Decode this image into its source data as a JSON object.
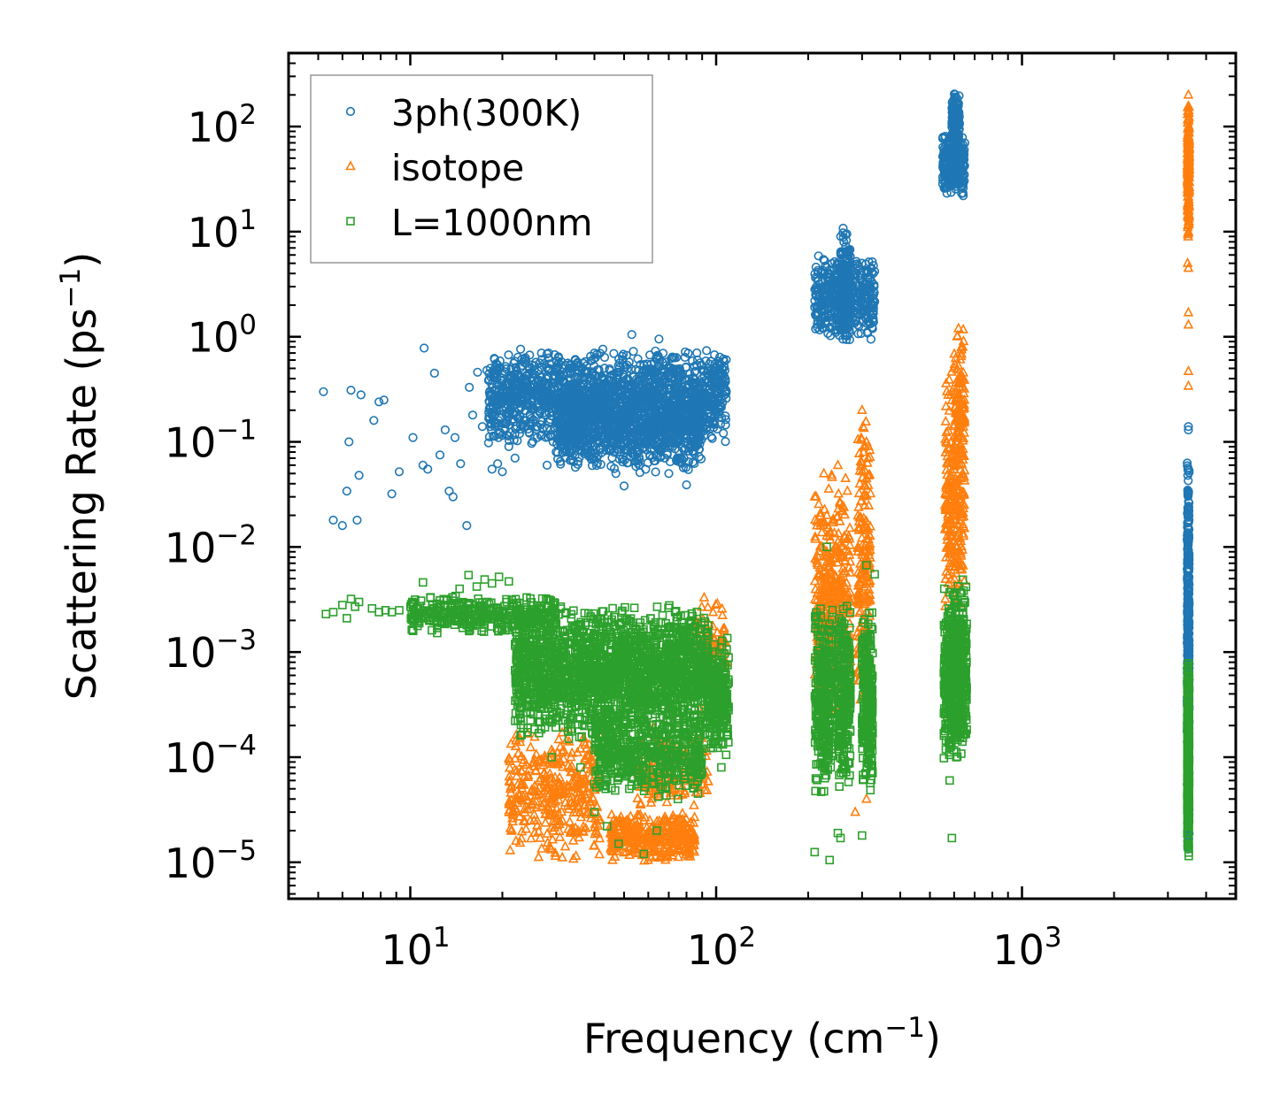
{
  "chart_data": {
    "type": "scatter",
    "title": "",
    "xlabel": "Frequency (cm",
    "xlabel_sup": "−1",
    "xlabel_tail": ")",
    "ylabel": "Scattering Rate (ps",
    "ylabel_sup": "−1",
    "ylabel_tail": ")",
    "xscale": "log",
    "yscale": "log",
    "xlim": [
      4.0,
      5000
    ],
    "ylim": [
      4.5e-06,
      500
    ],
    "xticks": [
      {
        "value": 10,
        "base": "10",
        "exp": "1"
      },
      {
        "value": 100,
        "base": "10",
        "exp": "2"
      },
      {
        "value": 1000,
        "base": "10",
        "exp": "3"
      }
    ],
    "yticks": [
      {
        "value": 1e-05,
        "base": "10",
        "exp": "−5"
      },
      {
        "value": 0.0001,
        "base": "10",
        "exp": "−4"
      },
      {
        "value": 0.001,
        "base": "10",
        "exp": "−3"
      },
      {
        "value": 0.01,
        "base": "10",
        "exp": "−2"
      },
      {
        "value": 0.1,
        "base": "10",
        "exp": "−1"
      },
      {
        "value": 1,
        "base": "10",
        "exp": "0"
      },
      {
        "value": 10,
        "base": "10",
        "exp": "1"
      },
      {
        "value": 100,
        "base": "10",
        "exp": "2"
      }
    ],
    "legend_position": "top-left",
    "series": [
      {
        "name": "3ph(300K)",
        "marker": "circle",
        "color": "#1f77b4",
        "points": [
          [
            5.2,
            0.3
          ],
          [
            5.6,
            0.018
          ],
          [
            6.0,
            0.016
          ],
          [
            6.2,
            0.034
          ],
          [
            6.3,
            0.1
          ],
          [
            6.4,
            0.31
          ],
          [
            6.7,
            0.018
          ],
          [
            6.8,
            0.048
          ],
          [
            6.9,
            0.28
          ],
          [
            7.6,
            0.16
          ],
          [
            7.9,
            0.24
          ],
          [
            8.2,
            0.25
          ],
          [
            8.7,
            0.032
          ],
          [
            9.2,
            0.052
          ],
          [
            10.2,
            0.11
          ],
          [
            11.0,
            0.06
          ],
          [
            11.1,
            0.78
          ],
          [
            11.4,
            0.055
          ],
          [
            12.0,
            0.45
          ],
          [
            12.5,
            0.075
          ],
          [
            13.0,
            0.13
          ],
          [
            13.4,
            0.034
          ],
          [
            13.8,
            0.03
          ],
          [
            14.0,
            0.11
          ],
          [
            14.6,
            0.062
          ],
          [
            15.3,
            0.016
          ],
          [
            15.6,
            0.33
          ],
          [
            16.0,
            0.18
          ],
          [
            16.6,
            0.46
          ],
          [
            17.2,
            0.14
          ],
          [
            17.8,
            0.48
          ],
          [
            18.5,
            0.055
          ],
          [
            19.3,
            0.062
          ],
          [
            20.0,
            0.052
          ],
          [
            20.5,
            0.52
          ],
          [
            21.0,
            0.09
          ],
          [
            22.0,
            0.07
          ],
          [
            23.0,
            0.3
          ],
          [
            24.5,
            0.45
          ],
          [
            26.0,
            0.11
          ],
          [
            28.0,
            0.06
          ],
          [
            30.0,
            0.08
          ],
          [
            33.0,
            0.5
          ],
          [
            36.0,
            0.12
          ],
          [
            40.0,
            0.7
          ],
          [
            44.0,
            0.1
          ],
          [
            47.0,
            0.05
          ],
          [
            50.0,
            0.038
          ],
          [
            53.0,
            1.05
          ],
          [
            56.0,
            0.06
          ],
          [
            60.0,
            0.12
          ],
          [
            65.0,
            0.95
          ],
          [
            70.0,
            0.05
          ],
          [
            75.0,
            0.1
          ],
          [
            80.0,
            0.039
          ],
          [
            85.0,
            0.3
          ],
          [
            90.0,
            0.4
          ],
          [
            95.0,
            0.55
          ],
          [
            100.0,
            0.5
          ],
          [
            105.0,
            0.45
          ],
          [
            108.0,
            0.3
          ],
          [
            300.0,
            5.0
          ],
          [
            325.0,
            2.0
          ],
          [
            3500,
            0.14
          ],
          [
            3500,
            0.13
          ]
        ],
        "bands": [
          {
            "x": [
              18,
              108
            ],
            "y": [
              0.09,
              0.8
            ],
            "n": 1600
          },
          {
            "x": [
              30,
              90
            ],
            "y": [
              0.05,
              0.35
            ],
            "n": 900
          },
          {
            "x": [
              210,
              330
            ],
            "y": [
              0.9,
              6.0
            ],
            "n": 420
          },
          {
            "x": [
              255,
              275
            ],
            "y": [
              0.8,
              12.0
            ],
            "n": 140
          },
          {
            "x": [
              550,
              650
            ],
            "y": [
              20.0,
              90.0
            ],
            "n": 260
          },
          {
            "x": [
              590,
              625
            ],
            "y": [
              60.0,
              220.0
            ],
            "n": 140
          },
          {
            "x": [
              3470,
              3520
            ],
            "y": [
              1e-05,
              0.12
            ],
            "n": 500
          }
        ]
      },
      {
        "name": "isotope",
        "marker": "triangle",
        "color": "#ff7f0e",
        "points": [
          [
            210,
            0.03
          ],
          [
            225,
            0.05
          ],
          [
            230,
            0.02
          ],
          [
            250,
            0.06
          ],
          [
            265,
            0.045
          ],
          [
            300,
            0.2
          ],
          [
            310,
            0.1
          ],
          [
            560,
            0.025
          ],
          [
            590,
            0.3
          ],
          [
            620,
            1.2
          ],
          [
            640,
            0.8
          ],
          [
            580,
            0.008
          ],
          [
            600,
            0.015
          ],
          [
            3500,
            200
          ],
          [
            3500,
            10
          ],
          [
            3480,
            5.0
          ],
          [
            3500,
            4.5
          ],
          [
            3500,
            1.7
          ],
          [
            3500,
            1.3
          ],
          [
            3500,
            0.47
          ],
          [
            3500,
            0.34
          ],
          [
            285,
            3e-05
          ],
          [
            310,
            4e-05
          ]
        ],
        "bands": [
          {
            "x": [
              21,
              42
            ],
            "y": [
              1e-05,
              0.0002
            ],
            "n": 380
          },
          {
            "x": [
              45,
              85
            ],
            "y": [
              1e-05,
              3e-05
            ],
            "n": 360
          },
          {
            "x": [
              55,
              95
            ],
            "y": [
              3e-05,
              0.0002
            ],
            "n": 200
          },
          {
            "x": [
              85,
              108
            ],
            "y": [
              0.0002,
              0.004
            ],
            "n": 120
          },
          {
            "x": [
              210,
              240
            ],
            "y": [
              0.0002,
              0.05
            ],
            "n": 200
          },
          {
            "x": [
              240,
              275
            ],
            "y": [
              0.0002,
              0.05
            ],
            "n": 200
          },
          {
            "x": [
              290,
              320
            ],
            "y": [
              0.0002,
              0.2
            ],
            "n": 200
          },
          {
            "x": [
              560,
              650
            ],
            "y": [
              0.002,
              0.5
            ],
            "n": 260
          },
          {
            "x": [
              600,
              650
            ],
            "y": [
              0.05,
              1.2
            ],
            "n": 100
          },
          {
            "x": [
              3480,
              3520
            ],
            "y": [
              8.0,
              190.0
            ],
            "n": 220
          }
        ]
      },
      {
        "name": "L=1000nm",
        "marker": "square",
        "color": "#2ca02c",
        "points": [
          [
            5.3,
            0.0023
          ],
          [
            5.6,
            0.0024
          ],
          [
            6.0,
            0.0028
          ],
          [
            6.2,
            0.0021
          ],
          [
            6.4,
            0.0032
          ],
          [
            6.6,
            0.0027
          ],
          [
            6.8,
            0.003
          ],
          [
            7.5,
            0.0026
          ],
          [
            7.9,
            0.0024
          ],
          [
            8.3,
            0.0025
          ],
          [
            8.7,
            0.0024
          ],
          [
            9.2,
            0.0025
          ],
          [
            10.5,
            0.0026
          ],
          [
            11.0,
            0.0046
          ],
          [
            11.8,
            0.0028
          ],
          [
            12.5,
            0.0031
          ],
          [
            13.5,
            0.0025
          ],
          [
            14.5,
            0.004
          ],
          [
            15.5,
            0.0054
          ],
          [
            16.5,
            0.0042
          ],
          [
            17.5,
            0.0049
          ],
          [
            18.5,
            0.0045
          ],
          [
            19.5,
            0.0052
          ],
          [
            21.0,
            0.0047
          ],
          [
            22.0,
            0.00067
          ],
          [
            23.0,
            0.0008
          ],
          [
            24.0,
            0.0005
          ],
          [
            26.0,
            0.00035
          ],
          [
            29.0,
            0.0001
          ],
          [
            33.0,
            0.00015
          ],
          [
            36.0,
            8e-05
          ],
          [
            40.0,
            3e-05
          ],
          [
            44.0,
            2.2e-05
          ],
          [
            48.0,
            1.5e-05
          ],
          [
            52.0,
            5e-05
          ],
          [
            58.0,
            1.2e-05
          ],
          [
            64.0,
            2e-05
          ],
          [
            70.0,
            8e-05
          ],
          [
            75.0,
            4e-05
          ],
          [
            80.0,
            0.0006
          ],
          [
            100,
            0.00015
          ],
          [
            104,
            8e-05
          ],
          [
            210,
            1.25e-05
          ],
          [
            235,
            1.05e-05
          ],
          [
            250,
            1.9e-05
          ],
          [
            255,
            1.7e-05
          ],
          [
            300,
            1.8e-05
          ],
          [
            310,
            0.0067
          ],
          [
            330,
            0.0055
          ],
          [
            230,
            0.01
          ],
          [
            580,
            6e-05
          ],
          [
            590,
            1.7e-05
          ],
          [
            610,
            0.0001
          ]
        ],
        "bands": [
          {
            "x": [
              10,
              30
            ],
            "y": [
              0.0015,
              0.0035
            ],
            "n": 360
          },
          {
            "x": [
              22,
              95
            ],
            "y": [
              0.00015,
              0.003
            ],
            "n": 2000
          },
          {
            "x": [
              40,
              90
            ],
            "y": [
              4e-05,
              0.0003
            ],
            "n": 500
          },
          {
            "x": [
              95,
              110
            ],
            "y": [
              0.0001,
              0.0015
            ],
            "n": 200
          },
          {
            "x": [
              210,
              240
            ],
            "y": [
              4e-05,
              0.003
            ],
            "n": 320
          },
          {
            "x": [
              250,
              275
            ],
            "y": [
              5e-05,
              0.003
            ],
            "n": 260
          },
          {
            "x": [
              300,
              325
            ],
            "y": [
              4e-05,
              0.003
            ],
            "n": 260
          },
          {
            "x": [
              555,
              660
            ],
            "y": [
              8e-05,
              0.005
            ],
            "n": 500
          },
          {
            "x": [
              3470,
              3520
            ],
            "y": [
              1e-05,
              0.0009
            ],
            "n": 420
          }
        ]
      }
    ]
  }
}
